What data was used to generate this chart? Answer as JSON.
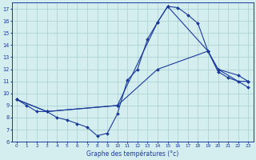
{
  "xlabel": "Graphe des températures (°c)",
  "xlim": [
    -0.5,
    23.5
  ],
  "ylim": [
    6,
    17.5
  ],
  "xticks": [
    0,
    1,
    2,
    3,
    4,
    5,
    6,
    7,
    8,
    9,
    10,
    11,
    12,
    13,
    14,
    15,
    16,
    17,
    18,
    19,
    20,
    21,
    22,
    23
  ],
  "yticks": [
    6,
    7,
    8,
    9,
    10,
    11,
    12,
    13,
    14,
    15,
    16,
    17
  ],
  "bg_color": "#d4eef0",
  "grid_color": "#aacece",
  "line_color": "#1a3a9a",
  "line1_x": [
    0,
    1,
    2,
    3,
    4,
    5,
    6,
    7,
    8,
    9,
    10,
    11,
    12,
    13,
    14,
    15,
    16,
    17,
    18,
    19,
    20,
    21,
    22,
    23
  ],
  "line1_y": [
    9.5,
    9.0,
    8.5,
    8.5,
    8.0,
    7.8,
    7.5,
    7.2,
    6.5,
    6.7,
    8.3,
    11.1,
    12.0,
    14.5,
    15.9,
    17.2,
    17.1,
    16.5,
    15.8,
    13.5,
    11.8,
    11.3,
    11.0,
    11.0
  ],
  "line2_x": [
    0,
    3,
    10,
    14,
    19,
    20,
    22,
    23
  ],
  "line2_y": [
    9.5,
    8.5,
    9.0,
    12.0,
    13.5,
    12.0,
    11.5,
    11.0
  ],
  "line3_x": [
    0,
    3,
    10,
    14,
    15,
    19,
    20,
    23
  ],
  "line3_y": [
    9.5,
    8.5,
    9.0,
    15.9,
    17.2,
    13.5,
    12.0,
    10.5
  ]
}
